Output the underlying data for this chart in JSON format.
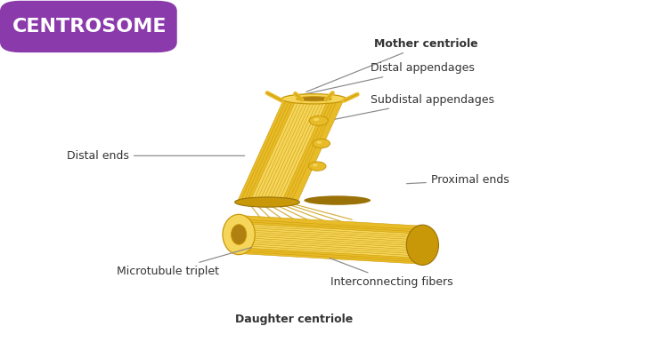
{
  "title": "CENTROSOME",
  "title_bg_color": "#8B3AAB",
  "title_text_color": "#FFFFFF",
  "bg_color": "#FFFFFF",
  "fig_width": 7.5,
  "fig_height": 3.94,
  "dpi": 100,
  "C_light": "#F5D55A",
  "C_mid": "#E8BB28",
  "C_dark": "#C89808",
  "C_shadow": "#9A7208",
  "C_shade": "#B08010",
  "annotations": [
    {
      "label": "Mother centriole",
      "bold": true,
      "xt": 0.56,
      "yt": 0.875,
      "xa": 0.455,
      "ya": 0.735,
      "ha": "left"
    },
    {
      "label": "Distal appendages",
      "bold": false,
      "xt": 0.555,
      "yt": 0.805,
      "xa": 0.43,
      "ya": 0.72,
      "ha": "left"
    },
    {
      "label": "Subdistal appendages",
      "bold": false,
      "xt": 0.555,
      "yt": 0.715,
      "xa": 0.49,
      "ya": 0.655,
      "ha": "left"
    },
    {
      "label": "Distal ends",
      "bold": false,
      "xt": 0.1,
      "yt": 0.555,
      "xa": 0.37,
      "ya": 0.555,
      "ha": "left"
    },
    {
      "label": "Proximal ends",
      "bold": false,
      "xt": 0.645,
      "yt": 0.485,
      "xa": 0.605,
      "ya": 0.475,
      "ha": "left"
    },
    {
      "label": "Microtubule triplet",
      "bold": false,
      "xt": 0.175,
      "yt": 0.225,
      "xa": 0.38,
      "ya": 0.295,
      "ha": "left"
    },
    {
      "label": "Interconnecting fibers",
      "bold": false,
      "xt": 0.495,
      "yt": 0.195,
      "xa": 0.49,
      "ya": 0.265,
      "ha": "left"
    },
    {
      "label": "Daughter centriole",
      "bold": true,
      "xt": 0.44,
      "yt": 0.088,
      "xa": null,
      "ya": null,
      "ha": "center"
    }
  ]
}
